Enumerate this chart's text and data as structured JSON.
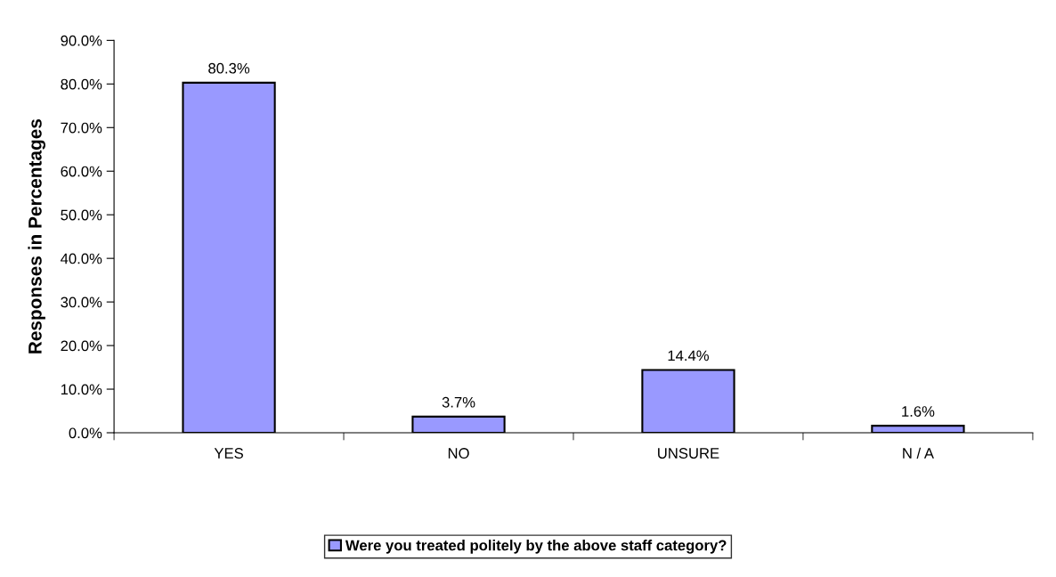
{
  "chart_data": {
    "type": "bar",
    "ylabel": "Responses in Percentages",
    "categories": [
      "YES",
      "NO",
      "UNSURE",
      "N / A"
    ],
    "series": [
      {
        "name": "Were you treated politely by the above staff category?",
        "color": "#9999ff",
        "values": [
          80.3,
          3.7,
          14.4,
          1.6
        ],
        "value_labels": [
          "80.3%",
          "3.7%",
          "14.4%",
          "1.6%"
        ]
      }
    ],
    "ylim": [
      0,
      90
    ],
    "yticks": [
      {
        "value": 0,
        "label": "0.0%"
      },
      {
        "value": 10,
        "label": "10.0%"
      },
      {
        "value": 20,
        "label": "20.0%"
      },
      {
        "value": 30,
        "label": "30.0%"
      },
      {
        "value": 40,
        "label": "40.0%"
      },
      {
        "value": 50,
        "label": "50.0%"
      },
      {
        "value": 60,
        "label": "60.0%"
      },
      {
        "value": 70,
        "label": "70.0%"
      },
      {
        "value": 80,
        "label": "80.0%"
      },
      {
        "value": 90,
        "label": "90.0%"
      }
    ],
    "grid": false,
    "legend": "bottom"
  }
}
